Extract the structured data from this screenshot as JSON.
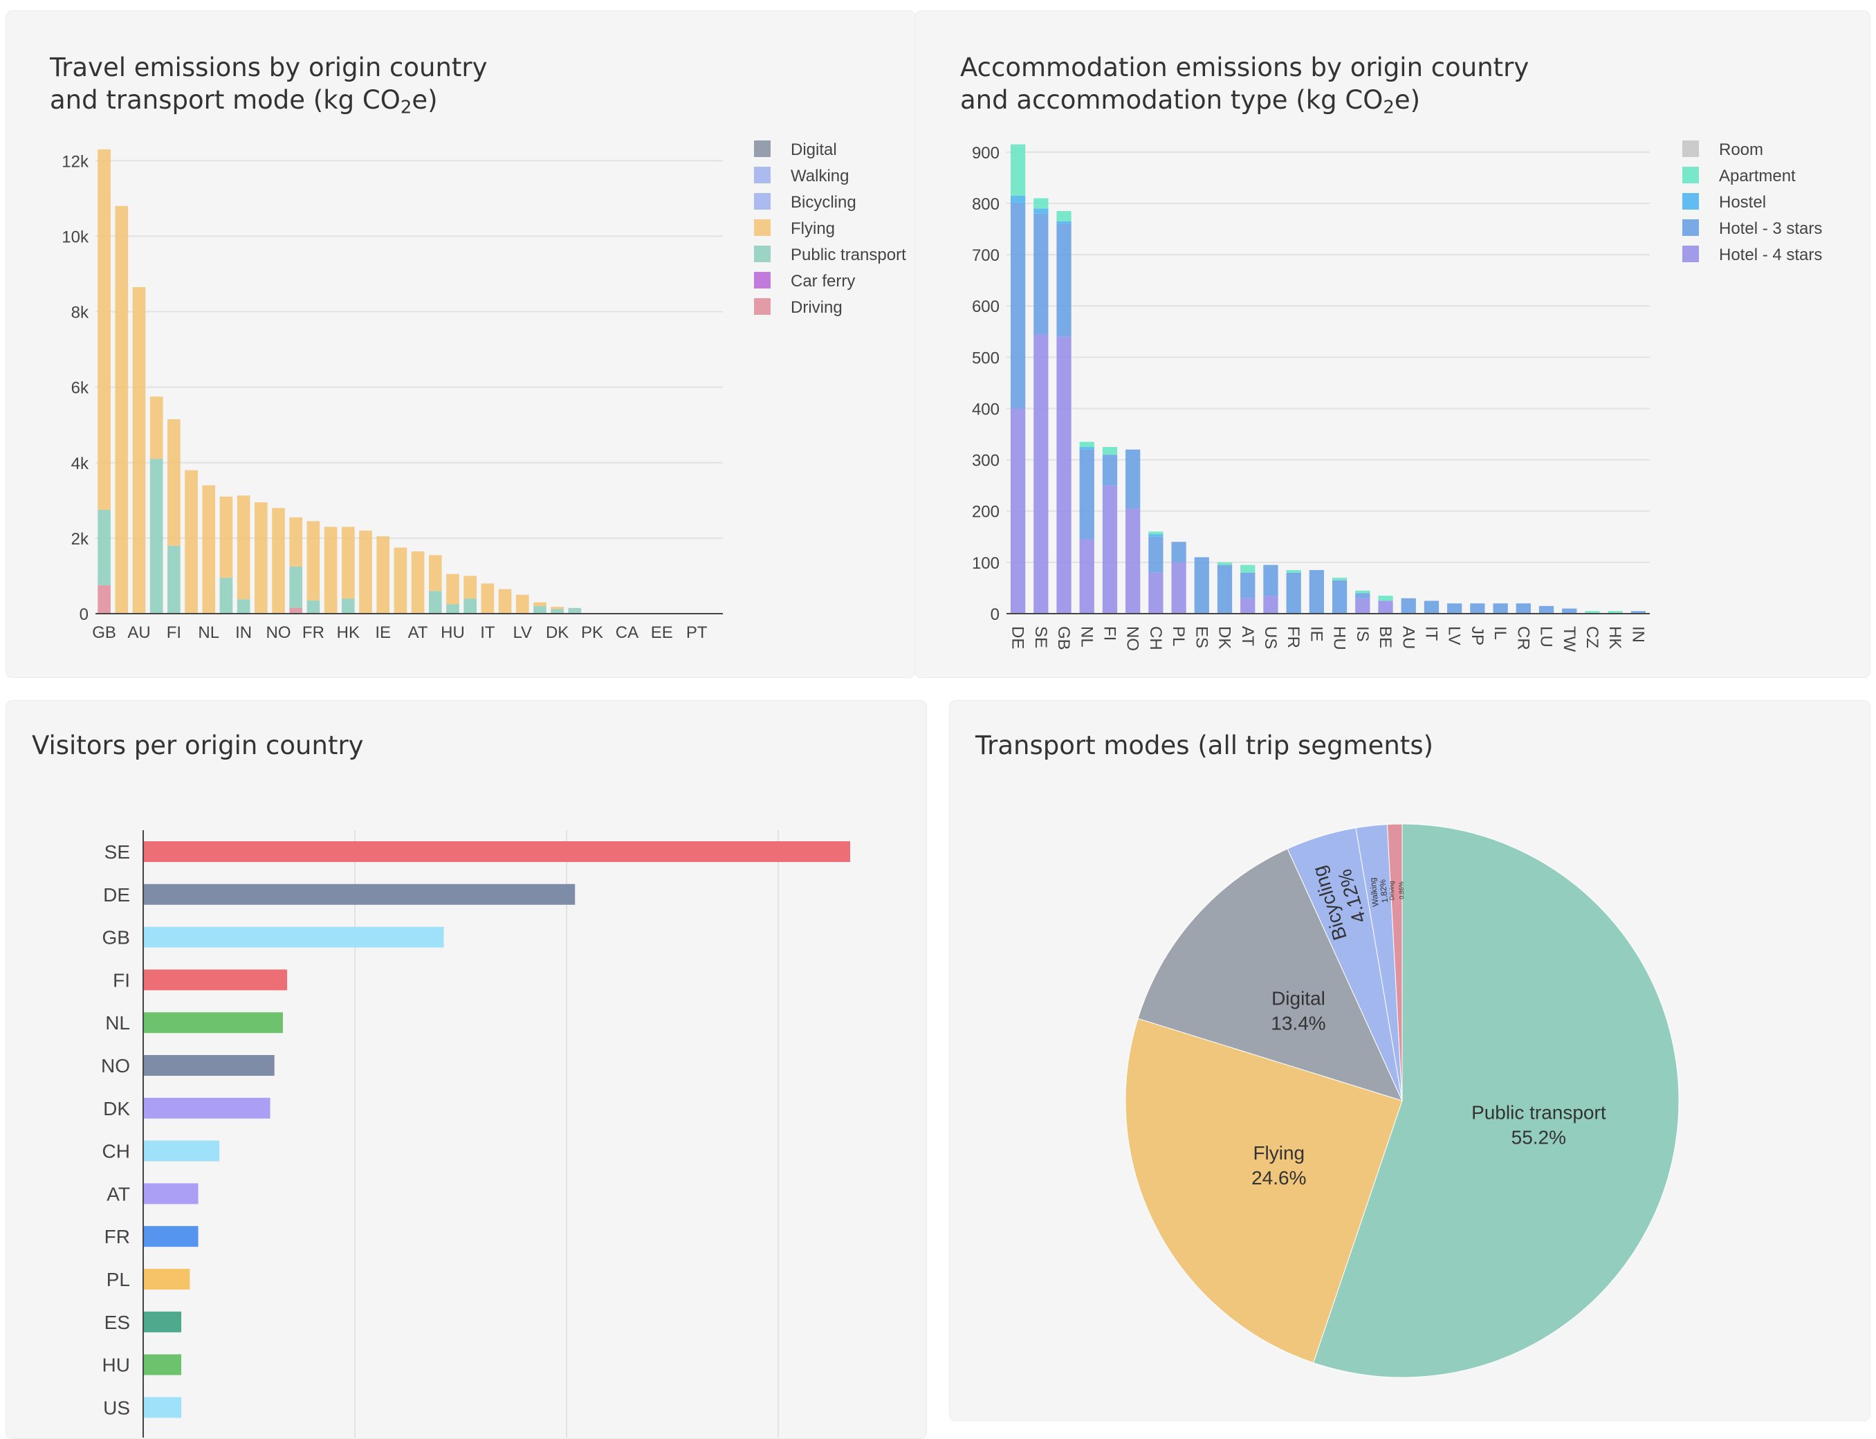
{
  "chart_data": [
    {
      "id": "travel",
      "type": "bar",
      "stacked": true,
      "title_line1": "Travel emissions by origin country",
      "title_line2_pre": "and transport mode (kg CO",
      "title_line2_sub": "2",
      "title_line2_post": "e)",
      "xlabel": "",
      "ylabel": "",
      "ylim": [
        0,
        12500
      ],
      "yticks": [
        0,
        2000,
        4000,
        6000,
        8000,
        10000,
        12000
      ],
      "ytick_labels": [
        "0",
        "2k",
        "4k",
        "6k",
        "8k",
        "10k",
        "12k"
      ],
      "grid": true,
      "legend_position": "top-right",
      "categories": [
        "GB",
        "",
        "AU",
        "",
        "FI",
        "",
        "NL",
        "",
        "IN",
        "",
        "NO",
        "",
        "FR",
        "",
        "HK",
        "",
        "IE",
        "",
        "AT",
        "",
        "HU",
        "",
        "IT",
        "",
        "LV",
        "",
        "DK",
        "",
        "PK",
        "",
        "CA",
        "",
        "EE",
        "",
        "PT",
        ""
      ],
      "series": [
        {
          "name": "Digital",
          "color": "#8b96a5",
          "values": [
            0,
            0,
            0,
            0,
            0,
            0,
            0,
            0,
            0,
            0,
            0,
            0,
            0,
            0,
            0,
            0,
            0,
            0,
            0,
            0,
            0,
            0,
            0,
            0,
            0,
            0,
            0,
            0,
            0,
            0,
            0,
            0,
            0,
            0,
            0,
            0
          ]
        },
        {
          "name": "Walking",
          "color": "#a4b5ee",
          "values": [
            0,
            0,
            0,
            0,
            0,
            0,
            0,
            0,
            0,
            0,
            0,
            0,
            0,
            0,
            0,
            0,
            0,
            0,
            0,
            0,
            0,
            0,
            0,
            0,
            0,
            0,
            0,
            0,
            0,
            0,
            0,
            0,
            0,
            0,
            0,
            0
          ]
        },
        {
          "name": "Bicycling",
          "color": "#a4b5ee",
          "values": [
            0,
            0,
            0,
            0,
            0,
            0,
            0,
            0,
            0,
            0,
            0,
            0,
            0,
            0,
            0,
            0,
            0,
            0,
            0,
            0,
            0,
            0,
            0,
            0,
            0,
            0,
            0,
            0,
            0,
            0,
            0,
            0,
            0,
            0,
            0,
            0
          ]
        },
        {
          "name": "Driving",
          "color": "#e0939f",
          "values": [
            750,
            0,
            0,
            0,
            0,
            0,
            0,
            0,
            0,
            0,
            0,
            150,
            0,
            0,
            0,
            0,
            0,
            0,
            0,
            0,
            0,
            0,
            0,
            0,
            0,
            0,
            0,
            0,
            0,
            0,
            0,
            0,
            0,
            0,
            0,
            0
          ]
        },
        {
          "name": "Car ferry",
          "color": "#bd6fd9",
          "values": [
            0,
            0,
            0,
            0,
            0,
            0,
            0,
            0,
            0,
            0,
            0,
            0,
            0,
            0,
            0,
            0,
            0,
            0,
            0,
            0,
            0,
            0,
            0,
            0,
            0,
            0,
            0,
            0,
            0,
            0,
            0,
            0,
            0,
            0,
            0,
            0
          ]
        },
        {
          "name": "Public transport",
          "color": "#93cfbf",
          "values": [
            2000,
            0,
            0,
            4100,
            1800,
            0,
            0,
            950,
            380,
            0,
            0,
            1100,
            350,
            0,
            400,
            0,
            0,
            0,
            0,
            600,
            250,
            400,
            0,
            0,
            0,
            200,
            120,
            150,
            0,
            0,
            0,
            0,
            0,
            0,
            0,
            0
          ]
        },
        {
          "name": "Flying",
          "color": "#f2c57c",
          "values": [
            9550,
            10800,
            8650,
            1650,
            3350,
            3800,
            3400,
            2150,
            2750,
            2950,
            2800,
            1300,
            2100,
            2300,
            1900,
            2200,
            2050,
            1750,
            1650,
            950,
            800,
            600,
            800,
            650,
            500,
            100,
            60,
            0,
            0,
            0,
            0,
            0,
            0,
            0,
            0,
            0
          ]
        }
      ],
      "legend": [
        "Digital",
        "Walking",
        "Bicycling",
        "Flying",
        "Public transport",
        "Car ferry",
        "Driving"
      ],
      "legend_colors": [
        "#8b96a5",
        "#a4b5ee",
        "#a4b5ee",
        "#f2c57c",
        "#93cfbf",
        "#bd6fd9",
        "#e0939f"
      ]
    },
    {
      "id": "accommodation",
      "type": "bar",
      "stacked": true,
      "title_line1": "Accommodation emissions by origin country",
      "title_line2_pre": "and accommodation type (kg CO",
      "title_line2_sub": "2",
      "title_line2_post": "e)",
      "xlabel": "",
      "ylabel": "",
      "ylim": [
        0,
        920
      ],
      "yticks": [
        0,
        100,
        200,
        300,
        400,
        500,
        600,
        700,
        800,
        900
      ],
      "ytick_labels": [
        "0",
        "100",
        "200",
        "300",
        "400",
        "500",
        "600",
        "700",
        "800",
        "900"
      ],
      "grid": true,
      "legend_position": "top-right",
      "categories": [
        "DE",
        "SE",
        "GB",
        "NL",
        "FI",
        "NO",
        "CH",
        "PL",
        "ES",
        "DK",
        "AT",
        "US",
        "FR",
        "IE",
        "HU",
        "IS",
        "BE",
        "AU",
        "IT",
        "LV",
        "JP",
        "IL",
        "CR",
        "LU",
        "TW",
        "CZ",
        "HK",
        "IN"
      ],
      "series": [
        {
          "name": "Hotel - 4 stars",
          "color": "#9a93e8",
          "values": [
            400,
            545,
            540,
            145,
            250,
            205,
            80,
            100,
            0,
            0,
            30,
            35,
            0,
            0,
            0,
            30,
            25,
            0,
            0,
            0,
            0,
            0,
            0,
            0,
            0,
            0,
            0,
            0
          ]
        },
        {
          "name": "Hotel - 3 stars",
          "color": "#6fa3e3",
          "values": [
            400,
            235,
            220,
            175,
            60,
            115,
            70,
            40,
            110,
            95,
            50,
            60,
            80,
            85,
            65,
            10,
            0,
            30,
            25,
            20,
            20,
            20,
            20,
            15,
            10,
            0,
            0,
            5
          ]
        },
        {
          "name": "Hostel",
          "color": "#55b6ee",
          "values": [
            15,
            10,
            5,
            5,
            0,
            0,
            5,
            0,
            0,
            0,
            0,
            0,
            0,
            0,
            0,
            0,
            0,
            0,
            0,
            0,
            0,
            0,
            0,
            0,
            0,
            0,
            0,
            0
          ]
        },
        {
          "name": "Apartment",
          "color": "#6ee6c6",
          "values": [
            100,
            20,
            20,
            10,
            15,
            0,
            5,
            0,
            0,
            5,
            15,
            0,
            5,
            0,
            5,
            5,
            10,
            0,
            0,
            0,
            0,
            0,
            0,
            0,
            0,
            5,
            5,
            0
          ]
        },
        {
          "name": "Room",
          "color": "#c7c7c7",
          "values": [
            0,
            0,
            0,
            0,
            0,
            0,
            0,
            0,
            0,
            0,
            0,
            0,
            0,
            0,
            0,
            0,
            0,
            0,
            0,
            0,
            0,
            0,
            0,
            0,
            0,
            0,
            0,
            0
          ]
        }
      ],
      "legend": [
        "Room",
        "Apartment",
        "Hostel",
        "Hotel - 3 stars",
        "Hotel - 4 stars"
      ],
      "legend_colors": [
        "#c7c7c7",
        "#6ee6c6",
        "#55b6ee",
        "#6fa3e3",
        "#9a93e8"
      ]
    },
    {
      "id": "visitors",
      "type": "bar",
      "orientation": "horizontal",
      "title": "Visitors per origin country",
      "xlabel": "",
      "ylabel": "",
      "xlim": [
        0,
        35
      ],
      "grid": true,
      "categories": [
        "SE",
        "DE",
        "GB",
        "FI",
        "NL",
        "NO",
        "DK",
        "CH",
        "AT",
        "FR",
        "PL",
        "ES",
        "HU",
        "US"
      ],
      "values": [
        33.4,
        20.4,
        14.2,
        6.8,
        6.6,
        6.2,
        6.0,
        3.6,
        2.6,
        2.6,
        2.2,
        1.8,
        1.8,
        1.8
      ],
      "colors": [
        "#ee6e75",
        "#7f8ca8",
        "#9ee1f8",
        "#ee6e75",
        "#6cc26d",
        "#7f8ca8",
        "#ab9ef5",
        "#9ee1f8",
        "#ab9ef5",
        "#5594ef",
        "#f6c366",
        "#4fa98d",
        "#6cc26d",
        "#9ee1f8"
      ]
    },
    {
      "id": "modes",
      "type": "pie",
      "title": "Transport modes (all trip segments)",
      "slices": [
        {
          "label": "Public transport",
          "value": 55.2,
          "text": "55.2%",
          "color": "#93cdbe"
        },
        {
          "label": "Flying",
          "value": 24.6,
          "text": "24.6%",
          "color": "#f0c57c"
        },
        {
          "label": "Digital",
          "value": 13.4,
          "text": "13.4%",
          "color": "#9ea4ae"
        },
        {
          "label": "Bicycling",
          "value": 4.12,
          "text": "4.12%",
          "color": "#a3b7ef"
        },
        {
          "label": "Walking",
          "value": 1.82,
          "text": "1.82%",
          "color": "#a3b7ef"
        },
        {
          "label": "Driving",
          "value": 0.86,
          "text": "0.86%",
          "color": "#e0939f"
        }
      ]
    }
  ]
}
